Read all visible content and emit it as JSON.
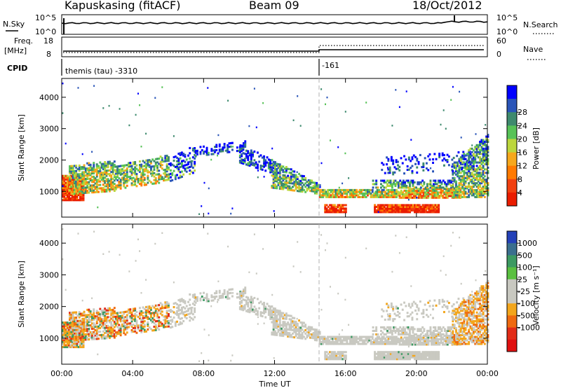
{
  "header": {
    "station": "Kapuskasing (fitACF)",
    "beam": "Beam 09",
    "date": "18/Oct/2012"
  },
  "strips": {
    "nsky_label": "N.Sky",
    "nsky_ticks": [
      "10^5",
      "10^0"
    ],
    "nsearch_label": "N.Search",
    "nsearch_ticks": [
      "10^5",
      "10^0"
    ],
    "freq_label": "Freq.",
    "freq_unit": "[MHz]",
    "freq_ticks": [
      "18",
      "8"
    ],
    "nave_label": "Nave",
    "nave_ticks": [
      "60",
      "0"
    ],
    "cpid_label": "CPID",
    "cpid_start": "themis (tau) -3310",
    "cpid_change": "-161"
  },
  "chart_data": [
    {
      "type": "heatmap",
      "name": "power",
      "ylabel": "Slant Range [km]",
      "xlabel": "",
      "x_range_hours": [
        0,
        24
      ],
      "ylim": [
        180,
        4600
      ],
      "yticks": [
        "1000",
        "2000",
        "3000",
        "4000"
      ],
      "colorbar": {
        "label": "Power [dB]",
        "ticks": [
          "4",
          "8",
          "12",
          "16",
          "20",
          "24",
          "28"
        ],
        "colors": [
          "#0000ff",
          "#2a55b8",
          "#3e8a6e",
          "#57c257",
          "#bcd63c",
          "#f6a81c",
          "#ff7a00",
          "#f24010",
          "#ea1c00"
        ]
      }
    },
    {
      "type": "heatmap",
      "name": "velocity",
      "ylabel": "Slant Range [km]",
      "xlabel": "Time UT",
      "x_range_hours": [
        0,
        24
      ],
      "xticks": [
        "00:00",
        "04:00",
        "08:00",
        "12:00",
        "16:00",
        "20:00",
        "00:00"
      ],
      "ylim": [
        180,
        4600
      ],
      "yticks": [
        "1000",
        "2000",
        "3000",
        "4000"
      ],
      "colorbar": {
        "label": "Velocity [m s⁻¹]",
        "ticks": [
          "1000",
          "500",
          "100",
          "25",
          "-25",
          "-100",
          "-500",
          "-1000"
        ],
        "colors": [
          "#2441b8",
          "#3a6f8e",
          "#3c9a62",
          "#5ac040",
          "#c8c8c0",
          "#c8c8c0",
          "#f3a61c",
          "#ef6a10",
          "#e22c18",
          "#e01010"
        ]
      }
    }
  ]
}
